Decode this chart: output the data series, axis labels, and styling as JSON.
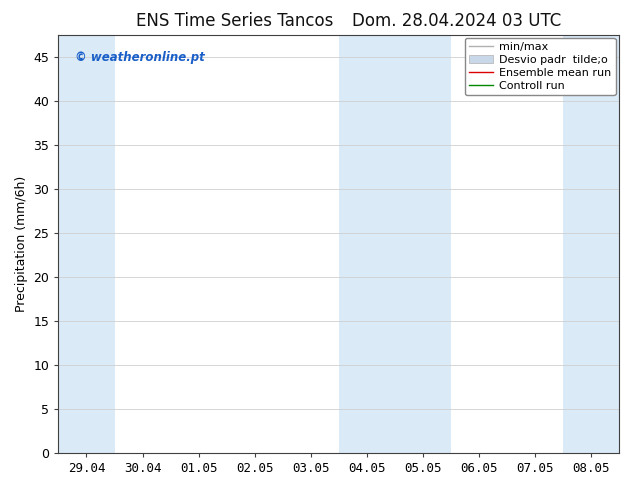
{
  "title_left": "ENS Time Series Tancos",
  "title_right": "Dom. 28.04.2024 03 UTC",
  "ylabel": "Precipitation (mm/6h)",
  "ylim": [
    0,
    47.5
  ],
  "yticks": [
    0,
    5,
    10,
    15,
    20,
    25,
    30,
    35,
    40,
    45
  ],
  "x_labels": [
    "29.04",
    "30.04",
    "01.05",
    "02.05",
    "03.05",
    "04.05",
    "05.05",
    "06.05",
    "07.05",
    "08.05"
  ],
  "x_positions": [
    0,
    1,
    2,
    3,
    4,
    5,
    6,
    7,
    8,
    9
  ],
  "xlim": [
    -0.5,
    9.5
  ],
  "watermark": "© weatheronline.pt",
  "bg_color": "#ffffff",
  "plot_bg_color": "#ffffff",
  "shaded_bands": [
    {
      "x_start": -0.5,
      "x_end": 0.5
    },
    {
      "x_start": 4.5,
      "x_end": 6.5
    },
    {
      "x_start": 8.5,
      "x_end": 9.5
    }
  ],
  "band_color": "#daeaf7",
  "legend_labels": [
    "min/max",
    "Desvio padr  tilde;o",
    "Ensemble mean run",
    "Controll run"
  ],
  "legend_colors": [
    "#b0b0b0",
    "#c8d8e8",
    "#dd0000",
    "#008800"
  ],
  "legend_lws": [
    1.0,
    6,
    1.0,
    1.0
  ],
  "title_fontsize": 12,
  "tick_fontsize": 9,
  "legend_fontsize": 8,
  "watermark_color": "#1a5fc8",
  "grid_color": "#d0d0d0",
  "spine_color": "#404040"
}
